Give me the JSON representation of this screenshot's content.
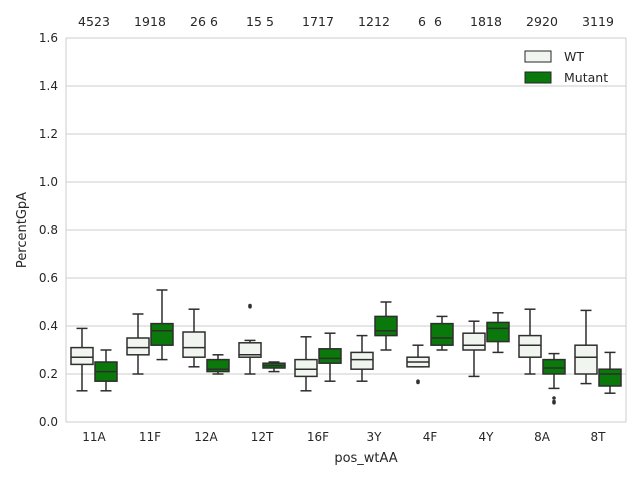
{
  "chart_data": {
    "type": "box",
    "xlabel": "pos_wtAA",
    "ylabel": "PercentGpA",
    "ylim": [
      0,
      1.6
    ],
    "yticks": [
      0.0,
      0.2,
      0.4,
      0.6,
      0.8,
      1.0,
      1.2,
      1.4,
      1.6
    ],
    "ytick_labels": [
      "0.0",
      "0.2",
      "0.4",
      "0.6",
      "0.8",
      "1.0",
      "1.2",
      "1.4",
      "1.6"
    ],
    "grid": true,
    "legend_position": "top-right",
    "categories": [
      "11A",
      "11F",
      "12A",
      "12T",
      "16F",
      "3Y",
      "4F",
      "4Y",
      "8A",
      "8T"
    ],
    "count_labels": [
      "45",
      "23",
      "19",
      "18",
      "26",
      "6",
      "15",
      "5",
      "17",
      "17",
      "12",
      "12",
      "6",
      "6",
      "18",
      "18",
      "29",
      "20",
      "31",
      "19"
    ],
    "series": [
      {
        "name": "WT",
        "color": "#f0f5f0",
        "boxes": [
          {
            "min": 0.13,
            "q1": 0.24,
            "median": 0.27,
            "q3": 0.31,
            "max": 0.39
          },
          {
            "min": 0.2,
            "q1": 0.28,
            "median": 0.31,
            "q3": 0.35,
            "max": 0.45
          },
          {
            "min": 0.23,
            "q1": 0.27,
            "median": 0.31,
            "q3": 0.375,
            "max": 0.47
          },
          {
            "min": 0.2,
            "q1": 0.27,
            "median": 0.28,
            "q3": 0.33,
            "max": 0.34,
            "outliers": [
              0.48,
              0.485
            ]
          },
          {
            "min": 0.13,
            "q1": 0.19,
            "median": 0.22,
            "q3": 0.26,
            "max": 0.355
          },
          {
            "min": 0.17,
            "q1": 0.22,
            "median": 0.26,
            "q3": 0.29,
            "max": 0.36
          },
          {
            "min": 0.23,
            "q1": 0.23,
            "median": 0.25,
            "q3": 0.27,
            "max": 0.32,
            "outliers": [
              0.165,
              0.17
            ]
          },
          {
            "min": 0.19,
            "q1": 0.3,
            "median": 0.32,
            "q3": 0.37,
            "max": 0.42
          },
          {
            "min": 0.2,
            "q1": 0.27,
            "median": 0.32,
            "q3": 0.36,
            "max": 0.47
          },
          {
            "min": 0.16,
            "q1": 0.2,
            "median": 0.27,
            "q3": 0.32,
            "max": 0.465
          }
        ]
      },
      {
        "name": "Mutant",
        "color": "#0a780a",
        "boxes": [
          {
            "min": 0.13,
            "q1": 0.17,
            "median": 0.21,
            "q3": 0.25,
            "max": 0.3
          },
          {
            "min": 0.26,
            "q1": 0.32,
            "median": 0.38,
            "q3": 0.41,
            "max": 0.55
          },
          {
            "min": 0.2,
            "q1": 0.21,
            "median": 0.22,
            "q3": 0.26,
            "max": 0.28
          },
          {
            "min": 0.21,
            "q1": 0.225,
            "median": 0.235,
            "q3": 0.245,
            "max": 0.25
          },
          {
            "min": 0.17,
            "q1": 0.245,
            "median": 0.265,
            "q3": 0.305,
            "max": 0.37
          },
          {
            "min": 0.3,
            "q1": 0.36,
            "median": 0.38,
            "q3": 0.44,
            "max": 0.5
          },
          {
            "min": 0.3,
            "q1": 0.32,
            "median": 0.35,
            "q3": 0.41,
            "max": 0.44
          },
          {
            "min": 0.29,
            "q1": 0.335,
            "median": 0.39,
            "q3": 0.415,
            "max": 0.455
          },
          {
            "min": 0.14,
            "q1": 0.2,
            "median": 0.225,
            "q3": 0.26,
            "max": 0.285,
            "outliers": [
              0.08,
              0.085,
              0.1
            ]
          },
          {
            "min": 0.12,
            "q1": 0.15,
            "median": 0.2,
            "q3": 0.22,
            "max": 0.29
          }
        ]
      }
    ]
  }
}
